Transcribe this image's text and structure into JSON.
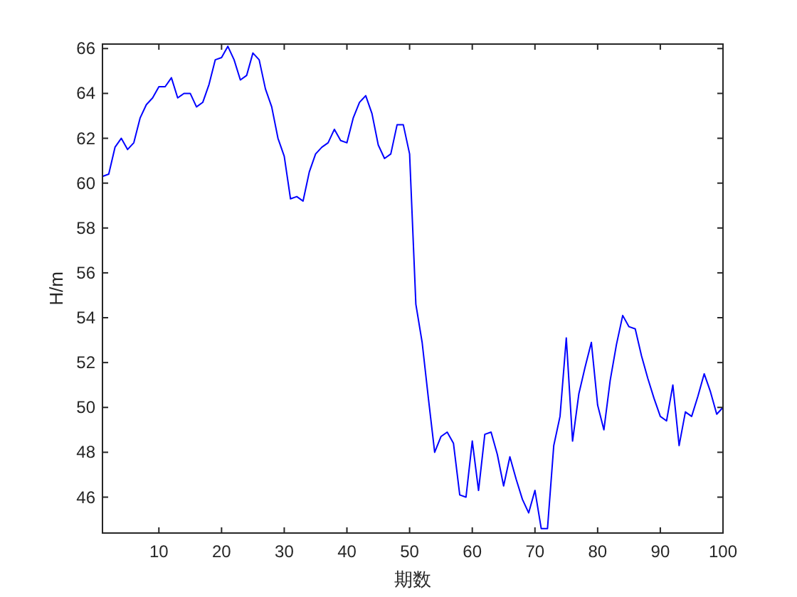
{
  "chart_data": {
    "type": "line",
    "xlabel": "期数",
    "ylabel": "H/m",
    "x": [
      1,
      2,
      3,
      4,
      5,
      6,
      7,
      8,
      9,
      10,
      11,
      12,
      13,
      14,
      15,
      16,
      17,
      18,
      19,
      20,
      21,
      22,
      23,
      24,
      25,
      26,
      27,
      28,
      29,
      30,
      31,
      32,
      33,
      34,
      35,
      36,
      37,
      38,
      39,
      40,
      41,
      42,
      43,
      44,
      45,
      46,
      47,
      48,
      49,
      50,
      51,
      52,
      53,
      54,
      55,
      56,
      57,
      58,
      59,
      60,
      61,
      62,
      63,
      64,
      65,
      66,
      67,
      68,
      69,
      70,
      71,
      72,
      73,
      74,
      75,
      76,
      77,
      78,
      79,
      80,
      81,
      82,
      83,
      84,
      85,
      86,
      87,
      88,
      89,
      90,
      91,
      92,
      93,
      94,
      95,
      96,
      97,
      98,
      99,
      100
    ],
    "series": [
      {
        "color": "#0000ff",
        "values": [
          60.3,
          60.4,
          61.6,
          62.0,
          61.5,
          61.8,
          62.9,
          63.5,
          63.8,
          64.3,
          64.3,
          64.7,
          63.8,
          64.0,
          64.0,
          63.4,
          63.6,
          64.4,
          65.5,
          65.6,
          66.1,
          65.5,
          64.6,
          64.8,
          65.8,
          65.5,
          64.2,
          63.4,
          62.0,
          61.2,
          59.3,
          59.4,
          59.2,
          60.5,
          61.3,
          61.6,
          61.8,
          62.4,
          61.9,
          61.8,
          62.9,
          63.6,
          63.9,
          63.1,
          61.7,
          61.1,
          61.3,
          62.6,
          62.6,
          61.3,
          54.6,
          52.9,
          50.4,
          48.0,
          48.7,
          48.9,
          48.4,
          46.1,
          46.0,
          48.5,
          46.3,
          48.8,
          48.9,
          47.9,
          46.5,
          47.8,
          46.8,
          45.9,
          45.3,
          46.3,
          44.6,
          44.6,
          48.3,
          49.6,
          53.1,
          48.5,
          50.6,
          51.8,
          52.9,
          50.1,
          49.0,
          51.2,
          52.8,
          54.1,
          53.6,
          53.5,
          52.3,
          51.3,
          50.4,
          49.6,
          49.4,
          51.0,
          48.3,
          49.8,
          49.6,
          50.5,
          51.5,
          50.7,
          49.7,
          50.0
        ]
      }
    ],
    "xlim": [
      1,
      100
    ],
    "ylim": [
      44.4,
      66.2
    ],
    "xticks": [
      10,
      20,
      30,
      40,
      50,
      60,
      70,
      80,
      90,
      100
    ],
    "yticks": [
      46,
      48,
      50,
      52,
      54,
      56,
      58,
      60,
      62,
      64,
      66
    ],
    "grid": false,
    "marker": "none",
    "line_style": "solid"
  }
}
